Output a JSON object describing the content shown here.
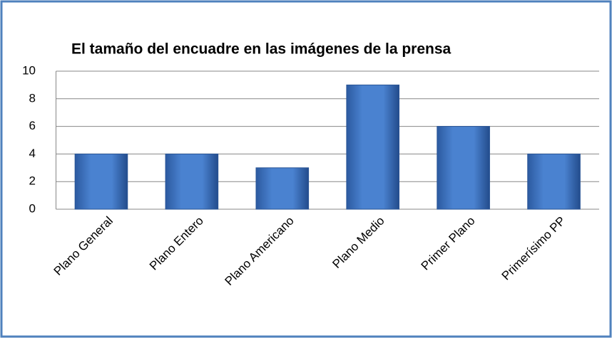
{
  "chart_data": {
    "type": "bar",
    "title": "El tamaño del encuadre en las imágenes de la prensa",
    "categories": [
      "Plano General",
      "Plano Entero",
      "Plano Americano",
      "Plano Medio",
      "Primer Plano",
      "Primerísimo PP"
    ],
    "values": [
      4,
      4,
      3,
      9,
      6,
      4
    ],
    "color": "#3f72c0",
    "ylim": [
      0,
      10
    ],
    "yticks": [
      0,
      2,
      4,
      6,
      8,
      10
    ],
    "grid": true
  }
}
